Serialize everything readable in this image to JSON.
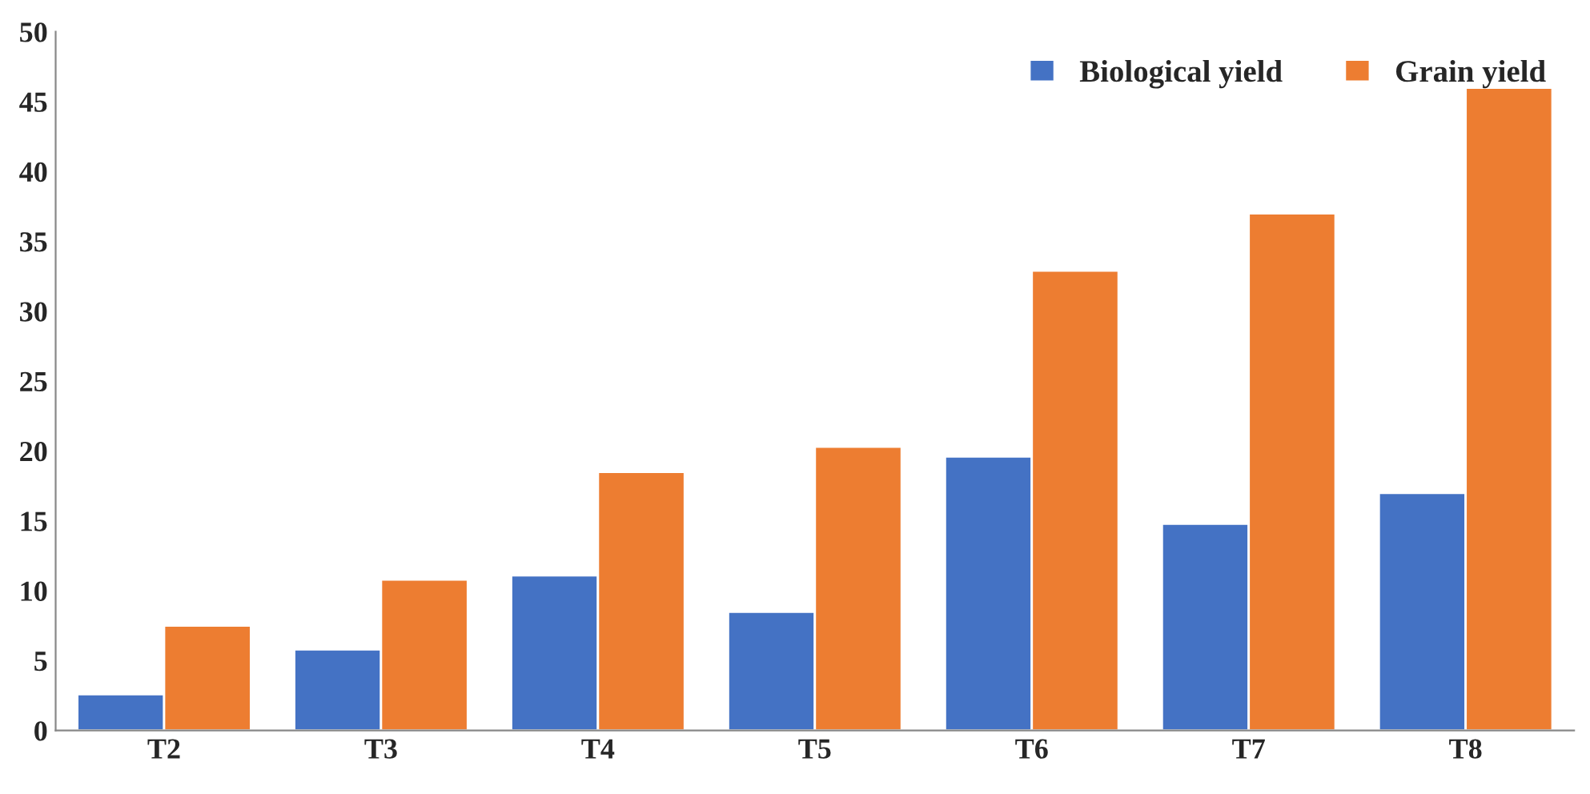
{
  "chart_data": {
    "type": "bar",
    "categories": [
      "T2",
      "T3",
      "T4",
      "T5",
      "T6",
      "T7",
      "T8"
    ],
    "series": [
      {
        "name": "Biological yield",
        "color": "#4472c4",
        "values": [
          2.6,
          5.8,
          11.1,
          8.5,
          19.6,
          14.8,
          17.0
        ]
      },
      {
        "name": "Grain yield",
        "color": "#ed7d31",
        "values": [
          7.5,
          10.8,
          18.5,
          20.3,
          32.9,
          37.0,
          46.0
        ]
      }
    ],
    "ylim": [
      0,
      50
    ],
    "yticks": [
      0,
      5,
      10,
      15,
      20,
      25,
      30,
      35,
      40,
      45,
      50
    ],
    "grid": false,
    "legend": "top right"
  }
}
